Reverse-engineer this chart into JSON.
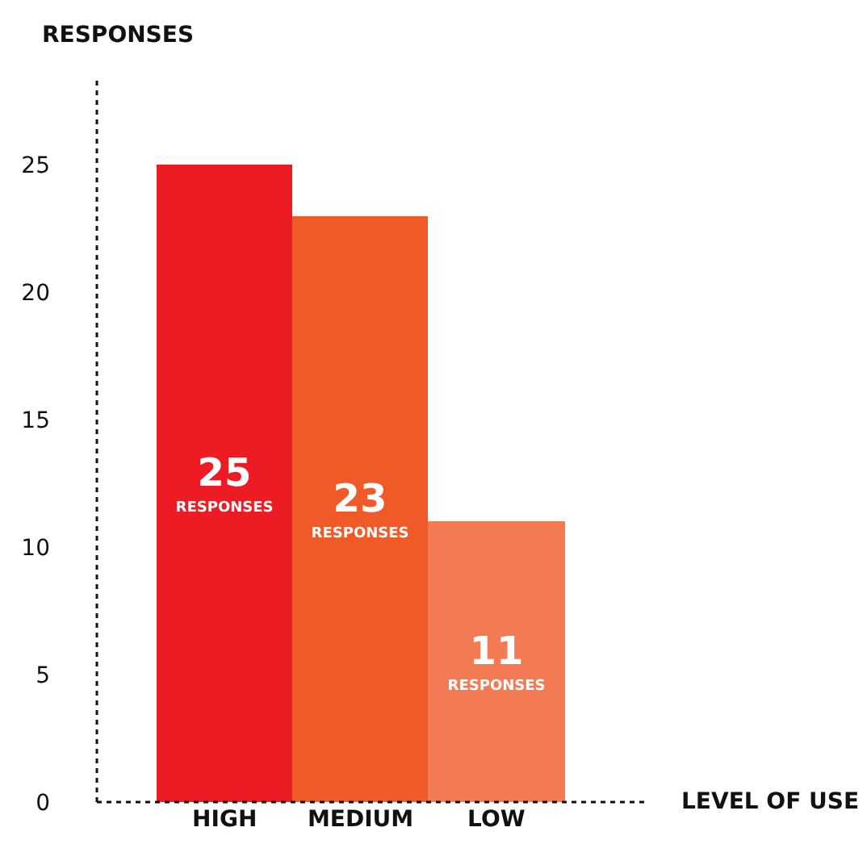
{
  "chart_data": {
    "type": "bar",
    "xlabel": "LEVEL OF USE",
    "ylabel": "RESPONSES",
    "categories": [
      "HIGH",
      "MEDIUM",
      "LOW"
    ],
    "values": [
      25,
      23,
      11
    ],
    "colors": [
      "#ed1c24",
      "#f05a28",
      "#f37b53"
    ],
    "value_labels": [
      "25\nRESPONSES",
      "23\nRESPONSES",
      "11\nRESPONSES"
    ],
    "ylim": [
      0,
      28.3
    ],
    "yticks": [
      0,
      5,
      10,
      15,
      20,
      25
    ]
  }
}
